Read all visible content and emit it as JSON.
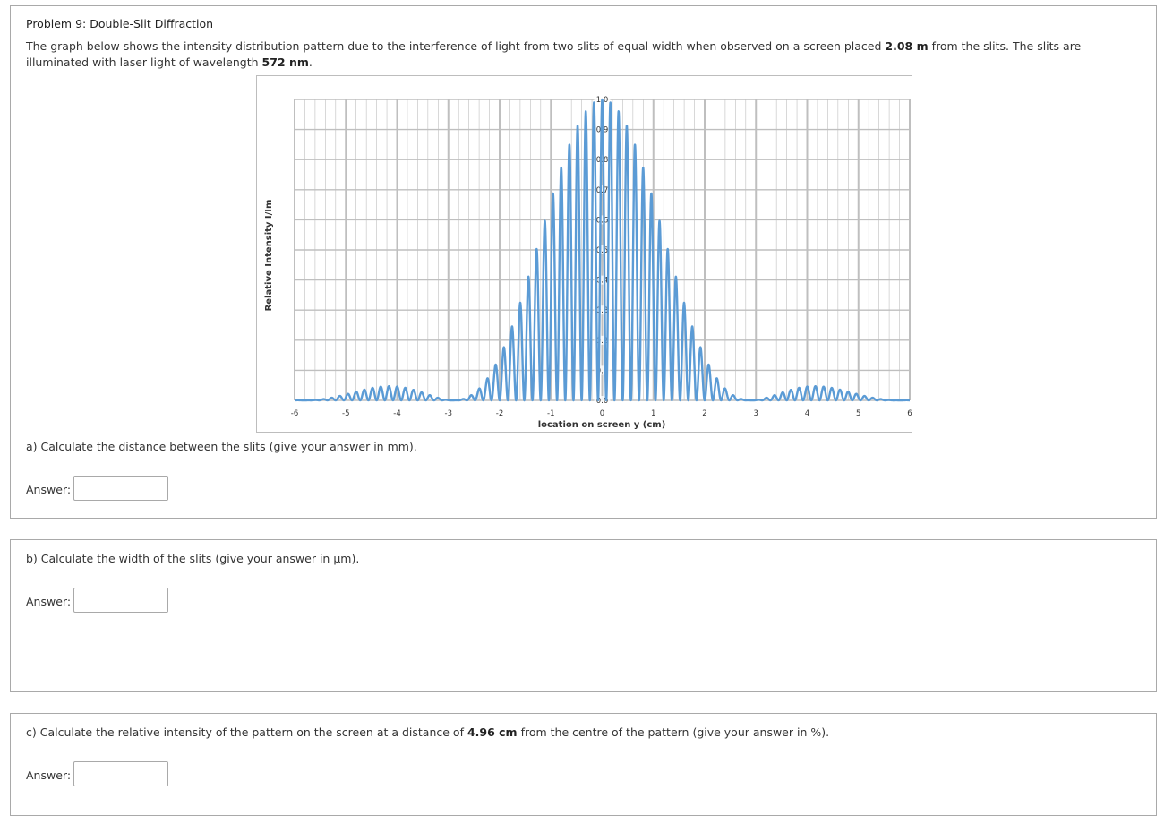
{
  "problem_title": "Problem 9: Double-Slit Diffraction",
  "intro": {
    "part1": "The graph below shows the intensity distribution pattern due to the interference of light from two slits of equal width when observed on a screen placed ",
    "distance": "2.08 m",
    "part2": " from the slits. The slits are illuminated with laser light of wavelength ",
    "wavelength": "572 nm",
    "part3": "."
  },
  "questions": {
    "a": {
      "text": "a) Calculate the distance between the slits (give your answer in mm).",
      "answer_label": "Answer:",
      "answer_value": ""
    },
    "b": {
      "text": "b) Calculate the width of the slits (give your answer in µm).",
      "answer_label": "Answer:",
      "answer_value": ""
    },
    "c": {
      "text_before": "c) Calculate the relative intensity of the pattern on the screen at a distance of ",
      "distance": "4.96 cm",
      "text_after": " from the centre of the pattern (give your answer in %).",
      "answer_label": "Answer:",
      "answer_value": ""
    }
  },
  "colors": {
    "curve": "#5b9bd5",
    "grid": "#bfbfbf",
    "border": "#a9a9a9"
  },
  "chart_data": {
    "type": "line",
    "title": "",
    "xlabel": "location on screen y (cm)",
    "ylabel": "Relative Intensity I/Im",
    "xlim": [
      -6,
      6
    ],
    "ylim": [
      0,
      1
    ],
    "x_ticks": [
      "-6",
      "-5",
      "-4",
      "-3",
      "-2",
      "-1",
      "0",
      "1",
      "2",
      "3",
      "4",
      "5",
      "6"
    ],
    "y_ticks": [
      "0.0",
      "0.1",
      "0.2",
      "0.3",
      "0.4",
      "0.5",
      "0.6",
      "0.7",
      "0.8",
      "0.9",
      "1.0"
    ],
    "grid": true,
    "series": [
      {
        "model": "double_slit",
        "fringe_spacing_cm": 0.16,
        "envelope_first_zero_cm": 2.9,
        "x_range": [
          -6,
          6
        ]
      }
    ]
  }
}
